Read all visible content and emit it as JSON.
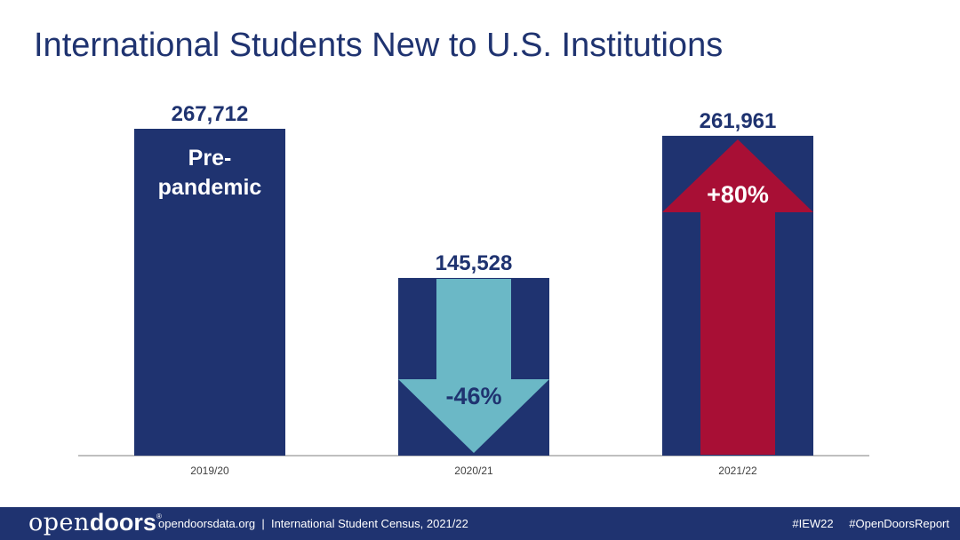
{
  "title": "International Students New to U.S. Institutions",
  "chart_data": {
    "type": "bar",
    "categories": [
      "2019/20",
      "2020/21",
      "2021/22"
    ],
    "values": [
      267712,
      145528,
      261961
    ],
    "value_labels": [
      "267,712",
      "145,528",
      "261,961"
    ],
    "ylim": [
      0,
      267712
    ],
    "bar_color": "#1f3370",
    "annotations": [
      {
        "category": "2019/20",
        "text_lines": [
          "Pre-",
          "pandemic"
        ],
        "color": "#ffffff"
      },
      {
        "category": "2020/21",
        "type": "arrow-down",
        "text": "-46%",
        "color": "#6bb8c6",
        "text_color": "#1f3370"
      },
      {
        "category": "2021/22",
        "type": "arrow-up",
        "text": "+80%",
        "color": "#a80f35",
        "text_color": "#ffffff"
      }
    ]
  },
  "footer": {
    "logo_part1": "open",
    "logo_part2": "doors",
    "logo_mark": "®",
    "source": "opendoorsdata.org  |  International Student Census, 2021/22",
    "tag1": "#IEW22",
    "tag2": "#OpenDoorsReport",
    "color": "#1f3370"
  }
}
